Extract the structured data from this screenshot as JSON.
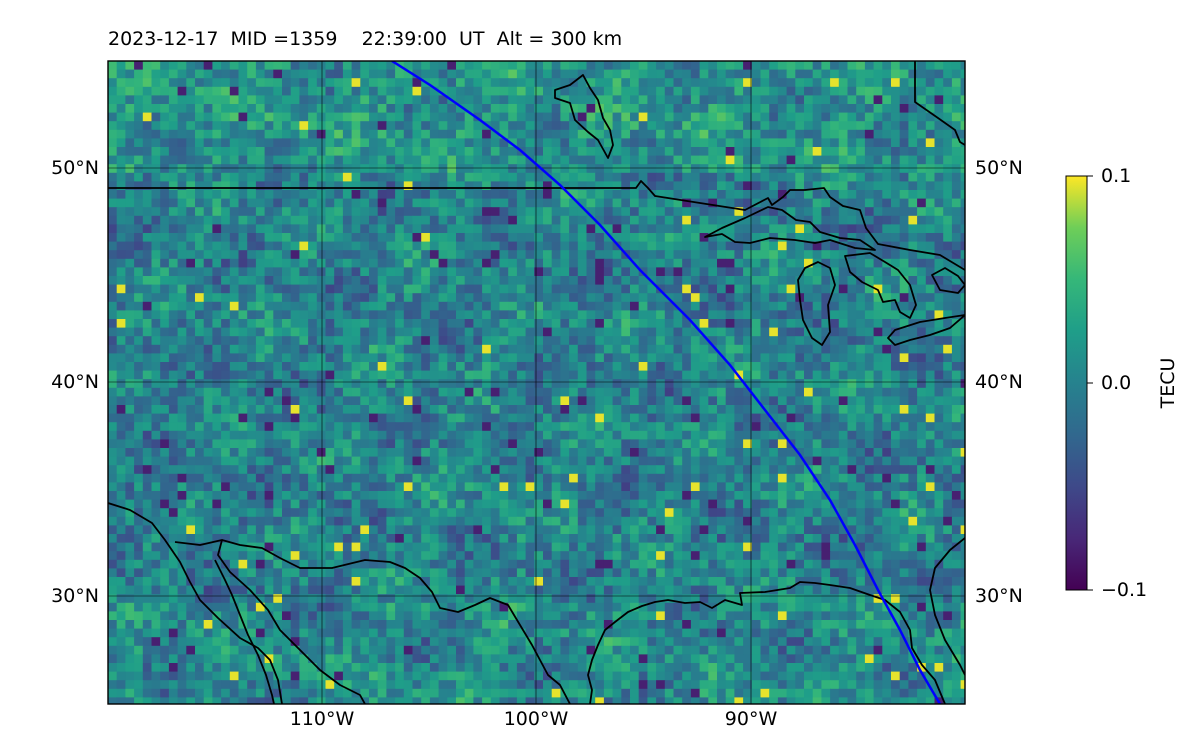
{
  "title": "2023-12-17  MID =1359    22:39:00  UT  Alt = 300 km",
  "map": {
    "lon_range": [
      -120,
      -80
    ],
    "lat_range": [
      25,
      55
    ],
    "lat_ticks": [
      {
        "value": 30,
        "label": "30°N"
      },
      {
        "value": 40,
        "label": "40°N"
      },
      {
        "value": 50,
        "label": "50°N"
      }
    ],
    "lon_ticks": [
      {
        "value": -110,
        "label": "110°W"
      },
      {
        "value": -100,
        "label": "100°W"
      },
      {
        "value": -90,
        "label": "90°W"
      }
    ],
    "field": "differential TEC",
    "track_color": "#0000ff",
    "coastline_color": "#000000",
    "grid_color": "#000000"
  },
  "colorbar": {
    "label": "TECU",
    "min": -0.1,
    "max": 0.1,
    "colormap": "viridis",
    "ticks": [
      {
        "value": 0.1,
        "label": "0.1"
      },
      {
        "value": 0.0,
        "label": "0.0"
      },
      {
        "value": -0.1,
        "label": "−0.1"
      }
    ]
  }
}
